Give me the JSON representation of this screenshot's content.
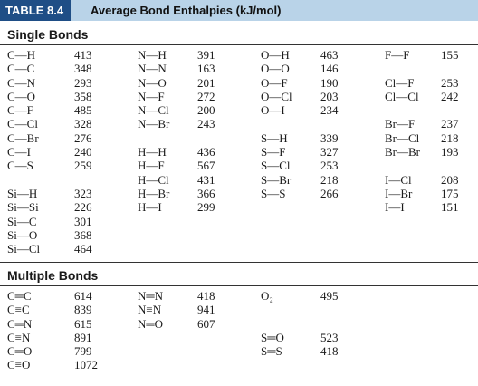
{
  "header": {
    "label": "TABLE 8.4",
    "title": "Average Bond Enthalpies (kJ/mol)"
  },
  "single": {
    "title": "Single Bonds",
    "rows": [
      [
        "C—H",
        413,
        "N—H",
        391,
        "O—H",
        463,
        "F—F",
        155
      ],
      [
        "C—C",
        348,
        "N—N",
        163,
        "O—O",
        146,
        null,
        null
      ],
      [
        "C—N",
        293,
        "N—O",
        201,
        "O—F",
        190,
        "Cl—F",
        253
      ],
      [
        "C—O",
        358,
        "N—F",
        272,
        "O—Cl",
        203,
        "Cl—Cl",
        242
      ],
      [
        "C—F",
        485,
        "N—Cl",
        200,
        "O—I",
        234,
        null,
        null
      ],
      [
        "C—Cl",
        328,
        "N—Br",
        243,
        null,
        null,
        "Br—F",
        237
      ],
      [
        "C—Br",
        276,
        null,
        null,
        "S—H",
        339,
        "Br—Cl",
        218
      ],
      [
        "C—I",
        240,
        "H—H",
        436,
        "S—F",
        327,
        "Br—Br",
        193
      ],
      [
        "C—S",
        259,
        "H—F",
        567,
        "S—Cl",
        253,
        null,
        null
      ],
      [
        null,
        null,
        "H—Cl",
        431,
        "S—Br",
        218,
        "I—Cl",
        208
      ],
      [
        "Si—H",
        323,
        "H—Br",
        366,
        "S—S",
        266,
        "I—Br",
        175
      ],
      [
        "Si—Si",
        226,
        "H—I",
        299,
        null,
        null,
        "I—I",
        151
      ],
      [
        "Si—C",
        301,
        null,
        null,
        null,
        null,
        null,
        null
      ],
      [
        "Si—O",
        368,
        null,
        null,
        null,
        null,
        null,
        null
      ],
      [
        "Si—Cl",
        464,
        null,
        null,
        null,
        null,
        null,
        null
      ]
    ]
  },
  "multiple": {
    "title": "Multiple Bonds",
    "rows": [
      [
        "C═C",
        614,
        "N═N",
        418,
        "O₂",
        495
      ],
      [
        "C≡C",
        839,
        "N≡N",
        941,
        null,
        null
      ],
      [
        "C═N",
        615,
        "N═O",
        607,
        null,
        null
      ],
      [
        "C≡N",
        891,
        null,
        null,
        "S═O",
        523
      ],
      [
        "C═O",
        799,
        null,
        null,
        "S═S",
        418
      ],
      [
        "C≡O",
        1072,
        null,
        null,
        null,
        null
      ]
    ]
  }
}
